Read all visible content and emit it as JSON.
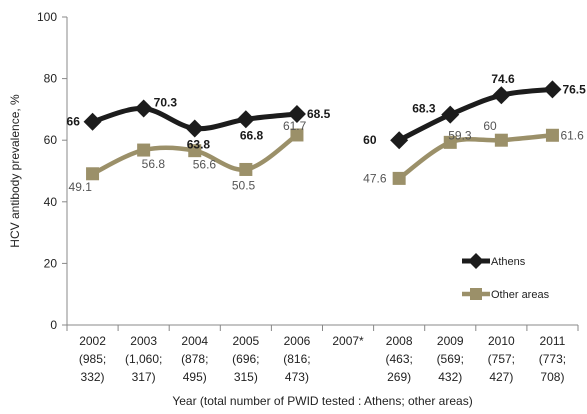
{
  "chart_data": {
    "type": "line",
    "xlabel": "Year (total number of PWID tested : Athens; other areas)",
    "ylabel": "HCV antibody prevalence, %",
    "ylim": [
      0,
      100
    ],
    "yticks": [
      0,
      20,
      40,
      60,
      80,
      100
    ],
    "grid": false,
    "legend_position": "bottom-right",
    "categories": [
      {
        "year": "2002",
        "n1": "(985;",
        "n2": "332)"
      },
      {
        "year": "2003",
        "n1": "(1,060;",
        "n2": "317)"
      },
      {
        "year": "2004",
        "n1": "(878;",
        "n2": "495)"
      },
      {
        "year": "2005",
        "n1": "(696;",
        "n2": "315)"
      },
      {
        "year": "2006",
        "n1": "(816;",
        "n2": "473)"
      },
      {
        "year": "2007*",
        "n1": "",
        "n2": ""
      },
      {
        "year": "2008",
        "n1": "(463;",
        "n2": "269)"
      },
      {
        "year": "2009",
        "n1": "(569;",
        "n2": "432)"
      },
      {
        "year": "2010",
        "n1": "(757;",
        "n2": "427)"
      },
      {
        "year": "2011",
        "n1": "(773;",
        "n2": "708)"
      }
    ],
    "series": [
      {
        "name": "Athens",
        "color": "#1c1c1c",
        "marker": "diamond",
        "values": [
          66,
          70.3,
          63.8,
          66.8,
          68.5,
          null,
          60,
          68.3,
          74.6,
          76.5
        ],
        "labels": [
          "66",
          "70.3",
          "63.8",
          "66.8",
          "68.5",
          "",
          "60",
          "68.3",
          "74.6",
          "76.5"
        ]
      },
      {
        "name": "Other areas",
        "color": "#9b9069",
        "marker": "square",
        "values": [
          49.1,
          56.8,
          56.6,
          50.5,
          61.7,
          null,
          47.6,
          59.3,
          60,
          61.6
        ],
        "labels": [
          "49.1",
          "56.8",
          "56.6",
          "50.5",
          "61.7",
          "",
          "47.6",
          "59.3",
          "60",
          "61.6"
        ]
      }
    ]
  }
}
